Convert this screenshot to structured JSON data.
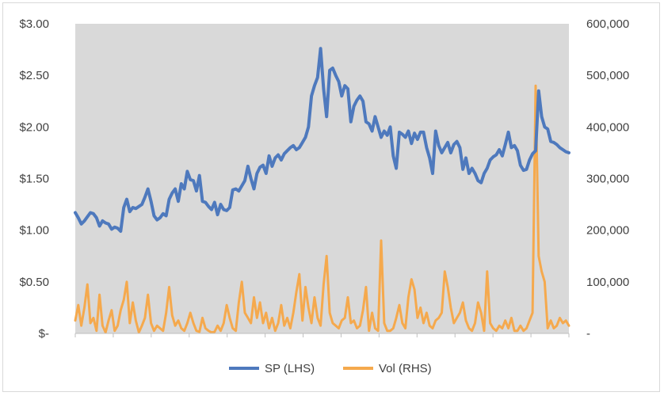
{
  "chart_data": {
    "type": "line",
    "title": "",
    "xlabel": "",
    "ylabel": "",
    "ylim_left": [
      0,
      3.0
    ],
    "ylim_right": [
      0,
      600000
    ],
    "left_ticks": [
      "$-",
      "$0.50",
      "$1.00",
      "$1.50",
      "$2.00",
      "$2.50",
      "$3.00"
    ],
    "right_ticks": [
      "-",
      "100,000",
      "200,000",
      "300,000",
      "400,000",
      "500,000",
      "600,000"
    ],
    "x_category_ticks": 13,
    "plot_background": "#d9d9d9",
    "grid": false,
    "legend_position": "bottom",
    "series": [
      {
        "name": "SP (LHS)",
        "axis": "left",
        "color": "#4e79bd",
        "values": [
          1.17,
          1.12,
          1.06,
          1.09,
          1.13,
          1.17,
          1.16,
          1.12,
          1.04,
          1.09,
          1.07,
          1.06,
          1.01,
          1.03,
          1.02,
          0.99,
          1.22,
          1.3,
          1.18,
          1.22,
          1.21,
          1.23,
          1.25,
          1.32,
          1.4,
          1.28,
          1.14,
          1.1,
          1.12,
          1.16,
          1.14,
          1.3,
          1.36,
          1.4,
          1.28,
          1.45,
          1.4,
          1.57,
          1.49,
          1.48,
          1.38,
          1.53,
          1.28,
          1.27,
          1.23,
          1.2,
          1.27,
          1.15,
          1.25,
          1.2,
          1.19,
          1.22,
          1.39,
          1.4,
          1.38,
          1.43,
          1.48,
          1.62,
          1.5,
          1.4,
          1.55,
          1.61,
          1.63,
          1.55,
          1.72,
          1.62,
          1.7,
          1.73,
          1.68,
          1.74,
          1.77,
          1.8,
          1.82,
          1.78,
          1.8,
          1.85,
          1.9,
          2.0,
          2.3,
          2.4,
          2.48,
          2.76,
          2.37,
          2.1,
          2.55,
          2.57,
          2.5,
          2.44,
          2.3,
          2.4,
          2.37,
          2.05,
          2.2,
          2.26,
          2.3,
          2.25,
          2.05,
          2.03,
          1.96,
          2.1,
          2.0,
          1.9,
          1.96,
          1.92,
          2.0,
          1.72,
          1.6,
          1.95,
          1.93,
          1.9,
          1.96,
          1.84,
          1.94,
          1.88,
          1.95,
          1.95,
          1.8,
          1.7,
          1.55,
          1.96,
          1.82,
          1.75,
          1.8,
          1.85,
          1.75,
          1.83,
          1.86,
          1.8,
          1.59,
          1.7,
          1.55,
          1.6,
          1.55,
          1.48,
          1.46,
          1.55,
          1.6,
          1.68,
          1.71,
          1.73,
          1.78,
          1.72,
          1.83,
          1.95,
          1.8,
          1.82,
          1.77,
          1.63,
          1.58,
          1.59,
          1.68,
          1.74,
          1.77,
          2.35,
          2.1,
          2.0,
          1.98,
          1.86,
          1.85,
          1.83,
          1.8,
          1.78,
          1.76,
          1.75
        ],
        "dates": []
      },
      {
        "name": "Vol (RHS)",
        "axis": "right",
        "color": "#f5a94d",
        "values": [
          25000,
          55000,
          15000,
          50000,
          95000,
          20000,
          30000,
          5000,
          75000,
          15000,
          2000,
          25000,
          45000,
          5000,
          15000,
          45000,
          65000,
          100000,
          20000,
          60000,
          25000,
          2000,
          15000,
          30000,
          75000,
          20000,
          5000,
          15000,
          10000,
          5000,
          40000,
          90000,
          35000,
          15000,
          25000,
          10000,
          5000,
          20000,
          40000,
          20000,
          5000,
          3000,
          30000,
          10000,
          5000,
          2000,
          3000,
          15000,
          5000,
          20000,
          55000,
          30000,
          10000,
          5000,
          60000,
          100000,
          40000,
          30000,
          20000,
          70000,
          30000,
          60000,
          20000,
          40000,
          10000,
          30000,
          5000,
          20000,
          55000,
          15000,
          30000,
          10000,
          40000,
          80000,
          115000,
          25000,
          90000,
          50000,
          20000,
          70000,
          30000,
          15000,
          95000,
          150000,
          40000,
          20000,
          15000,
          10000,
          25000,
          30000,
          70000,
          20000,
          25000,
          10000,
          15000,
          45000,
          90000,
          5000,
          40000,
          10000,
          5000,
          180000,
          20000,
          5000,
          5000,
          10000,
          30000,
          55000,
          20000,
          10000,
          70000,
          105000,
          85000,
          30000,
          50000,
          20000,
          40000,
          15000,
          10000,
          25000,
          30000,
          40000,
          120000,
          90000,
          50000,
          20000,
          30000,
          40000,
          60000,
          25000,
          10000,
          5000,
          20000,
          60000,
          40000,
          5000,
          120000,
          20000,
          10000,
          5000,
          15000,
          10000,
          25000,
          10000,
          30000,
          5000,
          5000,
          15000,
          5000,
          10000,
          25000,
          40000,
          480000,
          150000,
          120000,
          100000,
          10000,
          25000,
          10000,
          15000,
          30000,
          20000,
          25000,
          15000
        ],
        "dates": []
      }
    ]
  }
}
